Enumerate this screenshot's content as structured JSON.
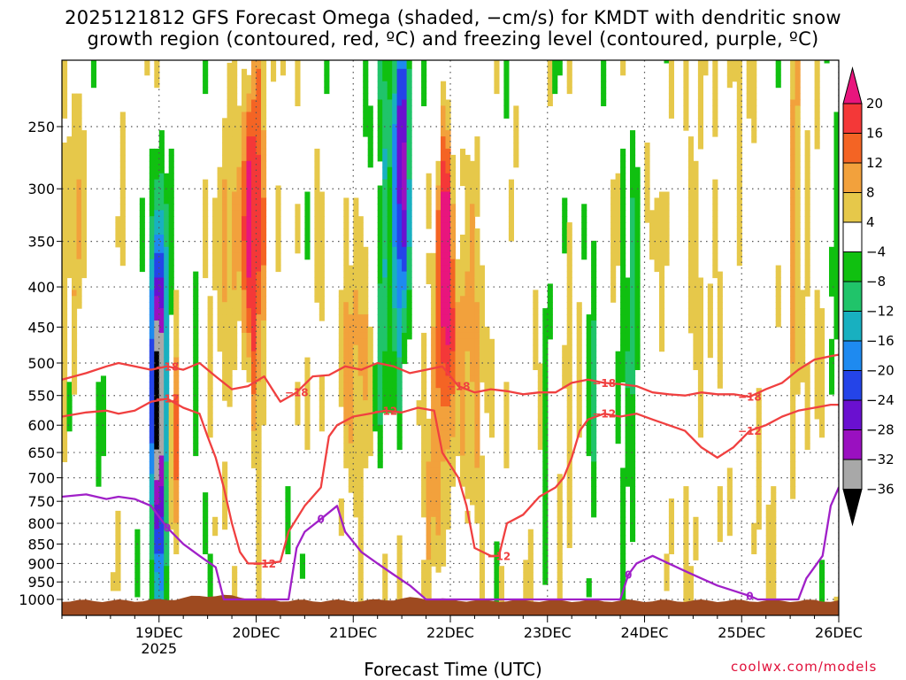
{
  "title": {
    "line1": "2025121812 GFS Forecast Omega (shaded, −cm/s) for KMDT with dendritic snow",
    "line2": "growth region (contoured, red, ºC) and freezing level (contoured, purple, ºC)"
  },
  "credit": "coolwx.com/models",
  "chart_data": {
    "type": "heatmap",
    "title": "2025121812 GFS Forecast Omega (shaded, −cm/s) for KMDT with dendritic snow growth region (contoured, red, ºC) and freezing level (contoured, purple, ºC)",
    "xlabel": "Forecast Time (UTC)",
    "ylabel": "",
    "y_axis": {
      "scale": "pressure (log), inverted",
      "ylim_hpa": [
        1000,
        200
      ],
      "ticks": [
        250,
        300,
        350,
        400,
        450,
        500,
        550,
        600,
        650,
        700,
        750,
        800,
        850,
        900,
        950,
        1000
      ]
    },
    "x_axis": {
      "xlim_hours": [
        -12,
        180
      ],
      "ticks": [
        {
          "hours": 12,
          "label": "19DEC",
          "sublabel": "2025"
        },
        {
          "hours": 36,
          "label": "20DEC"
        },
        {
          "hours": 60,
          "label": "21DEC"
        },
        {
          "hours": 84,
          "label": "22DEC"
        },
        {
          "hours": 108,
          "label": "23DEC"
        },
        {
          "hours": 132,
          "label": "24DEC"
        },
        {
          "hours": 156,
          "label": "25DEC"
        },
        {
          "hours": 180,
          "label": "26DEC"
        }
      ]
    },
    "grid": true,
    "colorbar": {
      "labels": [
        "20",
        "16",
        "12",
        "8",
        "4",
        "−4",
        "−8",
        "−12",
        "−16",
        "−20",
        "−24",
        "−28",
        "−32",
        "−36"
      ],
      "bins": [
        {
          "min": 20,
          "max": null,
          "color": "#e8157d"
        },
        {
          "min": 16,
          "max": 20,
          "color": "#f43838"
        },
        {
          "min": 12,
          "max": 16,
          "color": "#f46424"
        },
        {
          "min": 8,
          "max": 12,
          "color": "#f2a13c"
        },
        {
          "min": 4,
          "max": 8,
          "color": "#e6c84a"
        },
        {
          "min": -4,
          "max": 4,
          "color": "#ffffff"
        },
        {
          "min": -8,
          "max": -4,
          "color": "#10c010"
        },
        {
          "min": -12,
          "max": -8,
          "color": "#20c46a"
        },
        {
          "min": -16,
          "max": -12,
          "color": "#18b0c0"
        },
        {
          "min": -20,
          "max": -16,
          "color": "#1e8af0"
        },
        {
          "min": -24,
          "max": -20,
          "color": "#2444e8"
        },
        {
          "min": -28,
          "max": -24,
          "color": "#6a10d0"
        },
        {
          "min": -32,
          "max": -28,
          "color": "#9a10c0"
        },
        {
          "min": -36,
          "max": -32,
          "color": "#a8a8a8"
        },
        {
          "min": null,
          "max": -36,
          "color": "#000000"
        }
      ]
    },
    "shaded_features": [
      {
        "name": "upward motion column 19DEC",
        "hours_range": [
          8,
          16
        ],
        "p_range_hpa": [
          950,
          300
        ],
        "peak_value": -36
      },
      {
        "name": "descent column 20DEC",
        "hours_range": [
          32,
          40
        ],
        "p_range_hpa": [
          550,
          250
        ],
        "peak_value": 20
      },
      {
        "name": "upward motion column 21DEC",
        "hours_range": [
          70,
          76
        ],
        "p_range_hpa": [
          650,
          200
        ],
        "peak_value": -24
      },
      {
        "name": "descent column 22DEC",
        "hours_range": [
          78,
          88
        ],
        "p_range_hpa": [
          550,
          250
        ],
        "peak_value": 20
      },
      {
        "name": "upward motion column 23-24DEC",
        "hours_range": [
          126,
          132
        ],
        "p_range_hpa": [
          650,
          250
        ],
        "peak_value": -16
      }
    ],
    "contours": [
      {
        "variable": "temperature",
        "color": "#f04040",
        "level": -18,
        "labels": [
          "−18",
          "−18",
          "−18",
          "−18",
          "−18"
        ],
        "points": [
          [
            -12,
            525
          ],
          [
            -6,
            515
          ],
          [
            -1,
            505
          ],
          [
            2,
            500
          ],
          [
            6,
            505
          ],
          [
            10,
            510
          ],
          [
            14,
            505
          ],
          [
            18,
            510
          ],
          [
            22,
            500
          ],
          [
            26,
            520
          ],
          [
            30,
            540
          ],
          [
            34,
            535
          ],
          [
            38,
            520
          ],
          [
            40,
            540
          ],
          [
            42,
            560
          ],
          [
            46,
            545
          ],
          [
            50,
            520
          ],
          [
            54,
            518
          ],
          [
            58,
            505
          ],
          [
            62,
            510
          ],
          [
            66,
            500
          ],
          [
            70,
            505
          ],
          [
            74,
            515
          ],
          [
            78,
            510
          ],
          [
            82,
            505
          ],
          [
            86,
            535
          ],
          [
            90,
            545
          ],
          [
            94,
            540
          ],
          [
            98,
            543
          ],
          [
            102,
            548
          ],
          [
            106,
            545
          ],
          [
            110,
            545
          ],
          [
            114,
            530
          ],
          [
            118,
            525
          ],
          [
            122,
            530
          ],
          [
            126,
            532
          ],
          [
            130,
            535
          ],
          [
            134,
            545
          ],
          [
            138,
            548
          ],
          [
            142,
            550
          ],
          [
            146,
            545
          ],
          [
            150,
            548
          ],
          [
            154,
            548
          ],
          [
            158,
            552
          ],
          [
            162,
            540
          ],
          [
            166,
            530
          ],
          [
            170,
            510
          ],
          [
            174,
            495
          ],
          [
            178,
            490
          ],
          [
            180,
            488
          ]
        ]
      },
      {
        "variable": "temperature",
        "color": "#f04040",
        "level": -12,
        "labels": [
          "−12",
          "−12",
          "−12",
          "−12",
          "−12",
          "−12"
        ],
        "points": [
          [
            -12,
            585
          ],
          [
            -6,
            578
          ],
          [
            -1,
            575
          ],
          [
            2,
            580
          ],
          [
            6,
            575
          ],
          [
            10,
            560
          ],
          [
            14,
            555
          ],
          [
            18,
            570
          ],
          [
            22,
            580
          ],
          [
            24,
            620
          ],
          [
            26,
            660
          ],
          [
            28,
            720
          ],
          [
            30,
            800
          ],
          [
            32,
            870
          ],
          [
            34,
            900
          ],
          [
            38,
            900
          ],
          [
            42,
            895
          ],
          [
            44,
            820
          ],
          [
            48,
            760
          ],
          [
            52,
            720
          ],
          [
            54,
            620
          ],
          [
            56,
            600
          ],
          [
            60,
            585
          ],
          [
            64,
            580
          ],
          [
            68,
            575
          ],
          [
            72,
            578
          ],
          [
            76,
            570
          ],
          [
            80,
            575
          ],
          [
            82,
            650
          ],
          [
            86,
            700
          ],
          [
            88,
            760
          ],
          [
            90,
            860
          ],
          [
            94,
            880
          ],
          [
            96,
            880
          ],
          [
            98,
            800
          ],
          [
            102,
            780
          ],
          [
            106,
            740
          ],
          [
            110,
            720
          ],
          [
            112,
            700
          ],
          [
            114,
            660
          ],
          [
            116,
            610
          ],
          [
            118,
            590
          ],
          [
            122,
            580
          ],
          [
            126,
            585
          ],
          [
            130,
            580
          ],
          [
            134,
            590
          ],
          [
            138,
            600
          ],
          [
            142,
            610
          ],
          [
            146,
            640
          ],
          [
            150,
            660
          ],
          [
            154,
            640
          ],
          [
            158,
            610
          ],
          [
            162,
            600
          ],
          [
            166,
            585
          ],
          [
            170,
            575
          ],
          [
            174,
            570
          ],
          [
            178,
            565
          ],
          [
            180,
            565
          ]
        ]
      },
      {
        "variable": "temperature",
        "color": "#a020c8",
        "level": 0,
        "labels": [
          "0",
          "0",
          "0",
          "0"
        ],
        "points": [
          [
            -12,
            740
          ],
          [
            -6,
            735
          ],
          [
            -1,
            745
          ],
          [
            2,
            740
          ],
          [
            6,
            745
          ],
          [
            10,
            760
          ],
          [
            14,
            810
          ],
          [
            18,
            850
          ],
          [
            22,
            880
          ],
          [
            26,
            910
          ],
          [
            28,
            1000
          ],
          [
            44,
            1000
          ],
          [
            46,
            860
          ],
          [
            48,
            820
          ],
          [
            52,
            790
          ],
          [
            56,
            760
          ],
          [
            58,
            820
          ],
          [
            62,
            870
          ],
          [
            66,
            900
          ],
          [
            70,
            930
          ],
          [
            74,
            960
          ],
          [
            78,
            1000
          ],
          [
            126,
            1000
          ],
          [
            128,
            930
          ],
          [
            130,
            900
          ],
          [
            134,
            880
          ],
          [
            138,
            900
          ],
          [
            142,
            920
          ],
          [
            146,
            940
          ],
          [
            150,
            960
          ],
          [
            154,
            975
          ],
          [
            158,
            990
          ],
          [
            160,
            1000
          ],
          [
            170,
            1000
          ],
          [
            172,
            940
          ],
          [
            176,
            880
          ],
          [
            178,
            760
          ],
          [
            180,
            720
          ]
        ]
      }
    ],
    "terrain": {
      "color": "#9e4a20",
      "level_approx_hpa": 1005
    }
  }
}
